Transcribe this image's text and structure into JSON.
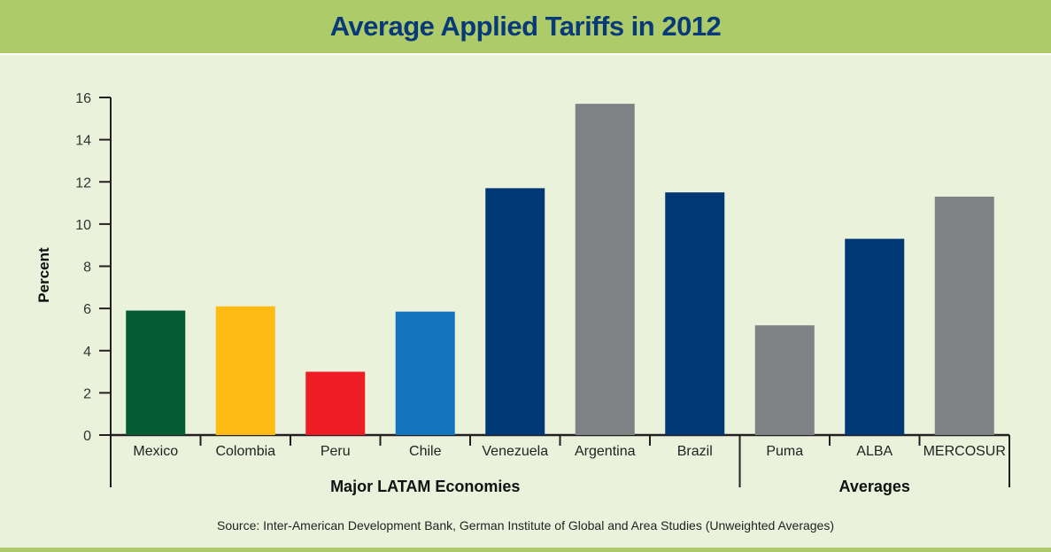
{
  "chart_data": {
    "type": "bar",
    "title": "Average Applied Tariffs in 2012",
    "xlabel": "",
    "ylabel": "Percent",
    "ylim": [
      0,
      16
    ],
    "yticks": [
      0,
      2,
      4,
      6,
      8,
      10,
      12,
      14,
      16
    ],
    "categories": [
      "Mexico",
      "Colombia",
      "Peru",
      "Chile",
      "Venezuela",
      "Argentina",
      "Brazil",
      "Puma",
      "ALBA",
      "MERCOSUR"
    ],
    "values": [
      5.9,
      6.1,
      3.0,
      5.85,
      11.7,
      15.7,
      11.5,
      5.2,
      9.3,
      11.3
    ],
    "colors": [
      "#065c32",
      "#fdbb14",
      "#ee1c25",
      "#1174bd",
      "#003876",
      "#808184",
      "#003876",
      "#808184",
      "#003876",
      "#808184"
    ],
    "groups": [
      {
        "label": "Major LATAM Economies",
        "start": 0,
        "end": 6
      },
      {
        "label": "Averages",
        "start": 7,
        "end": 9
      }
    ],
    "grid": false,
    "legend": "none",
    "source": "Source: Inter-American Development Bank, German Institute of Global and Area Studies (Unweighted Averages)"
  }
}
